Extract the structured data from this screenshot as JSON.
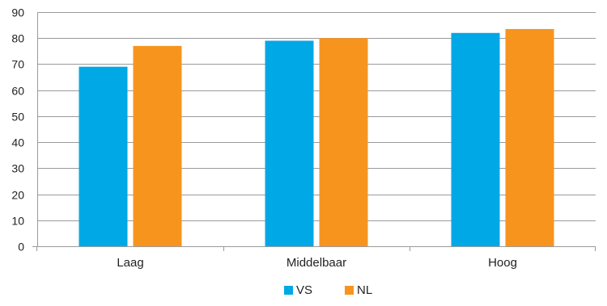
{
  "chart_data": {
    "type": "bar",
    "categories": [
      "Laag",
      "Middelbaar",
      "Hoog"
    ],
    "series": [
      {
        "name": "VS",
        "values": [
          69,
          79,
          82
        ],
        "color": "#00a8e6"
      },
      {
        "name": "NL",
        "values": [
          77,
          80,
          83.5
        ],
        "color": "#f7941e"
      }
    ],
    "ylim": [
      0,
      90
    ],
    "yticks": [
      "0",
      "10",
      "20",
      "30",
      "40",
      "50",
      "60",
      "70",
      "80",
      "90"
    ],
    "grid": true,
    "legend_position": "bottom-center",
    "title": "",
    "xlabel": "",
    "ylabel": ""
  }
}
